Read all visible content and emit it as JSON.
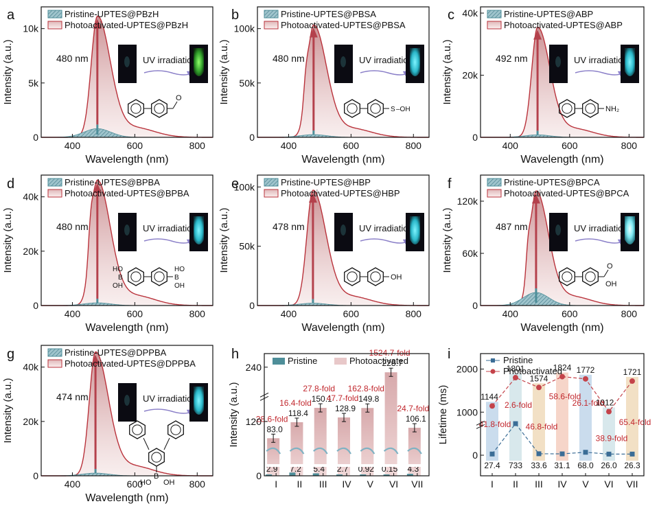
{
  "colors": {
    "pristine": "#4e8e99",
    "photo_line": "#b9323b",
    "photo_fill": "#c98b8e",
    "arrow": "#b4414c",
    "fold": "#c1272d",
    "lifetime_pristine": "#3b6d96",
    "lifetime_photo": "#c4434a"
  },
  "chart_data": [
    {
      "type": "area",
      "panel": "a",
      "xlabel": "Wavelength (nm)",
      "ylabel": "Intensity (a.u.)",
      "xlim": [
        300,
        850
      ],
      "ylim": [
        0,
        12000
      ],
      "xticks": [
        "400",
        "600",
        "800"
      ],
      "yticks": [
        "0",
        "5k",
        "10k"
      ],
      "peak_label": "480 nm",
      "uv_label": "UV irradiation",
      "legend": [
        "Pristine-UPTES@PBzH",
        "Photoactivated-UPTES@PBzH"
      ],
      "series": [
        {
          "name": "Pristine-UPTES@PBzH",
          "peak_x": 480,
          "peak_y": 800
        },
        {
          "name": "Photoactivated-UPTES@PBzH",
          "peak_x": 480,
          "peak_y": 11000,
          "shoulder_x": 455,
          "shoulder_y": 0
        }
      ],
      "substituent": "CHO",
      "sub_label": "O"
    },
    {
      "type": "area",
      "panel": "b",
      "xlabel": "Wavelength (nm)",
      "ylabel": "Intensity (a.u.)",
      "xlim": [
        300,
        850
      ],
      "ylim": [
        0,
        120000
      ],
      "xticks": [
        "400",
        "600",
        "800"
      ],
      "yticks": [
        "0",
        "50k",
        "100k"
      ],
      "peak_label": "480 nm",
      "uv_label": "UV irradiation",
      "legend": [
        "Pristine-UPTES@PBSA",
        "Photoactivated-UPTES@PBSA"
      ],
      "series": [
        {
          "name": "Pristine-UPTES@PBSA",
          "peak_x": 480,
          "peak_y": 2500
        },
        {
          "name": "Photoactivated-UPTES@PBSA",
          "peak_x": 480,
          "peak_y": 102000,
          "shoulder_x": 455,
          "shoulder_y": 70000
        }
      ],
      "substituent": "SO3H",
      "sub_label": "S"
    },
    {
      "type": "area",
      "panel": "c",
      "xlabel": "Wavelength (nm)",
      "ylabel": "Intensity (a.u.)",
      "xlim": [
        300,
        850
      ],
      "ylim": [
        0,
        42000
      ],
      "xticks": [
        "400",
        "600",
        "800"
      ],
      "yticks": [
        "0",
        "20k",
        "40k"
      ],
      "peak_label": "492 nm",
      "uv_label": "UV irradiation",
      "legend": [
        "Pristine-UPTES@ABP",
        "Photoactivated-UPTES@ABP"
      ],
      "series": [
        {
          "name": "Pristine-UPTES@ABP",
          "peak_x": 492,
          "peak_y": 800
        },
        {
          "name": "Photoactivated-UPTES@ABP",
          "peak_x": 492,
          "peak_y": 35000,
          "shoulder_x": 465,
          "shoulder_y": 0
        }
      ],
      "substituent": "NH2",
      "sub_label": "NH₂"
    },
    {
      "type": "area",
      "panel": "d",
      "xlabel": "Wavelength (nm)",
      "ylabel": "Intensity (a.u.)",
      "xlim": [
        300,
        850
      ],
      "ylim": [
        0,
        48000
      ],
      "xticks": [
        "400",
        "600",
        "800"
      ],
      "yticks": [
        "0",
        "20k",
        "40k"
      ],
      "peak_label": "480 nm",
      "uv_label": "UV irradiation",
      "legend": [
        "Pristine-UPTES@BPBA",
        "Photoactivated-UPTES@BPBA"
      ],
      "series": [
        {
          "name": "Pristine-UPTES@BPBA",
          "peak_x": 480,
          "peak_y": 1000
        },
        {
          "name": "Photoactivated-UPTES@BPBA",
          "peak_x": 480,
          "peak_y": 45500,
          "shoulder_x": 458,
          "shoulder_y": 36000
        }
      ],
      "substituent": "BPBA",
      "sub_labels": [
        "HO",
        "B",
        "OH",
        "HO",
        "B",
        "OH"
      ]
    },
    {
      "type": "area",
      "panel": "e",
      "xlabel": "Wavelength (nm)",
      "ylabel": "Intensity (a.u.)",
      "xlim": [
        300,
        850
      ],
      "ylim": [
        0,
        110000
      ],
      "xticks": [
        "400",
        "600",
        "800"
      ],
      "yticks": [
        "0",
        "50k",
        "100k"
      ],
      "peak_label": "478 nm",
      "uv_label": "UV irradiation",
      "legend": [
        "Pristine-UPTES@HBP",
        "Photoactivated-UPTES@HBP"
      ],
      "series": [
        {
          "name": "Pristine-UPTES@HBP",
          "peak_x": 478,
          "peak_y": 2000
        },
        {
          "name": "Photoactivated-UPTES@HBP",
          "peak_x": 478,
          "peak_y": 96000,
          "shoulder_x": 455,
          "shoulder_y": 0
        }
      ],
      "substituent": "OH",
      "sub_label": "OH"
    },
    {
      "type": "area",
      "panel": "f",
      "xlabel": "Wavelength (nm)",
      "ylabel": "Intensity (a.u.)",
      "xlim": [
        300,
        850
      ],
      "ylim": [
        0,
        150000
      ],
      "xticks": [
        "400",
        "600",
        "800"
      ],
      "yticks": [
        "0",
        "60k",
        "120k"
      ],
      "peak_label": "487 nm",
      "uv_label": "UV irradiation",
      "legend": [
        "Pristine-UPTES@BPCA",
        "Photoactivated-UPTES@BPCA"
      ],
      "series": [
        {
          "name": "Pristine-UPTES@BPCA",
          "peak_x": 487,
          "peak_y": 15000
        },
        {
          "name": "Photoactivated-UPTES@BPCA",
          "peak_x": 487,
          "peak_y": 130000,
          "shoulder_x": 460,
          "shoulder_y": 110000
        }
      ],
      "substituent": "COOH",
      "sub_labels": [
        "O",
        "OH"
      ]
    },
    {
      "type": "area",
      "panel": "g",
      "xlabel": "Wavelength (nm)",
      "ylabel": "Intensity (a.u.)",
      "xlim": [
        300,
        850
      ],
      "ylim": [
        0,
        48000
      ],
      "xticks": [
        "400",
        "600",
        "800"
      ],
      "yticks": [
        "0",
        "20k",
        "40k"
      ],
      "peak_label": "474 nm",
      "uv_label": "UV irradiation",
      "legend": [
        "Pristine-UPTES@DPPBA",
        "Photoactivated-UPTES@DPPBA"
      ],
      "series": [
        {
          "name": "Pristine-UPTES@DPPBA",
          "peak_x": 474,
          "peak_y": 1000
        },
        {
          "name": "Photoactivated-UPTES@DPPBA",
          "peak_x": 474,
          "peak_y": 45000,
          "shoulder_x": 450,
          "shoulder_y": 0
        }
      ],
      "substituent": "DPPBA",
      "sub_labels": [
        "B",
        "HO",
        "OH"
      ]
    },
    {
      "type": "bar",
      "panel": "h",
      "ylabel": "Intensity (a.u.)",
      "categories": [
        "I",
        "II",
        "III",
        "IV",
        "V",
        "VI",
        "VII"
      ],
      "yticks": [
        "0",
        "120",
        "240"
      ],
      "legend": [
        "Pristine",
        "Photoactivated"
      ],
      "series": [
        {
          "name": "Pristine",
          "values": [
            2.9,
            7.2,
            5.4,
            2.7,
            0.92,
            0.15,
            4.3
          ]
        },
        {
          "name": "Photoactivated",
          "values": [
            83.0,
            118.4,
            150.1,
            128.9,
            149.8,
            228.7,
            106.1
          ]
        }
      ],
      "labels": {
        "pristine": [
          "2.9",
          "7.2",
          "5.4",
          "2.7",
          "0.92",
          "0.15",
          "4.3"
        ],
        "photo": [
          "83.0",
          "118.4",
          "150.1",
          "128.9",
          "149.8",
          "228.7",
          "106.1"
        ],
        "fold": [
          "28.6-fold",
          "16.4-fold",
          "27.8-fold",
          "47.7-fold",
          "162.8-fold",
          "1524.7-fold",
          "24.7-fold"
        ]
      }
    },
    {
      "type": "line",
      "panel": "i",
      "ylabel": "Lifetime (ms)",
      "categories": [
        "I",
        "II",
        "III",
        "IV",
        "V",
        "VI",
        "VII"
      ],
      "yticks": [
        "0",
        "1000",
        "2000"
      ],
      "legend": [
        "Pristine",
        "Photoactivated"
      ],
      "series": [
        {
          "name": "Pristine",
          "values": [
            27.4,
            733,
            33.6,
            31.1,
            68.0,
            26.0,
            26.3
          ]
        },
        {
          "name": "Photoactivated",
          "values": [
            1144,
            1801,
            1574,
            1824,
            1772,
            1012,
            1721
          ]
        }
      ],
      "labels": {
        "pristine": [
          "27.4",
          "733",
          "33.6",
          "31.1",
          "68.0",
          "26.0",
          "26.3"
        ],
        "photo": [
          "1144",
          "1801",
          "1574",
          "1824",
          "1772",
          "1012",
          "1721"
        ],
        "fold": [
          "41.8-fold",
          "2.6-fold",
          "46.8-fold",
          "58.6-fold",
          "26.1-fold",
          "38.9-fold",
          "65.4-fold"
        ]
      },
      "band_colors": [
        "#9fbfdf",
        "#b8d6dc",
        "#e8c796",
        "#efb39c",
        "#9fbfdf",
        "#b8d6dc",
        "#e8c796"
      ]
    }
  ]
}
